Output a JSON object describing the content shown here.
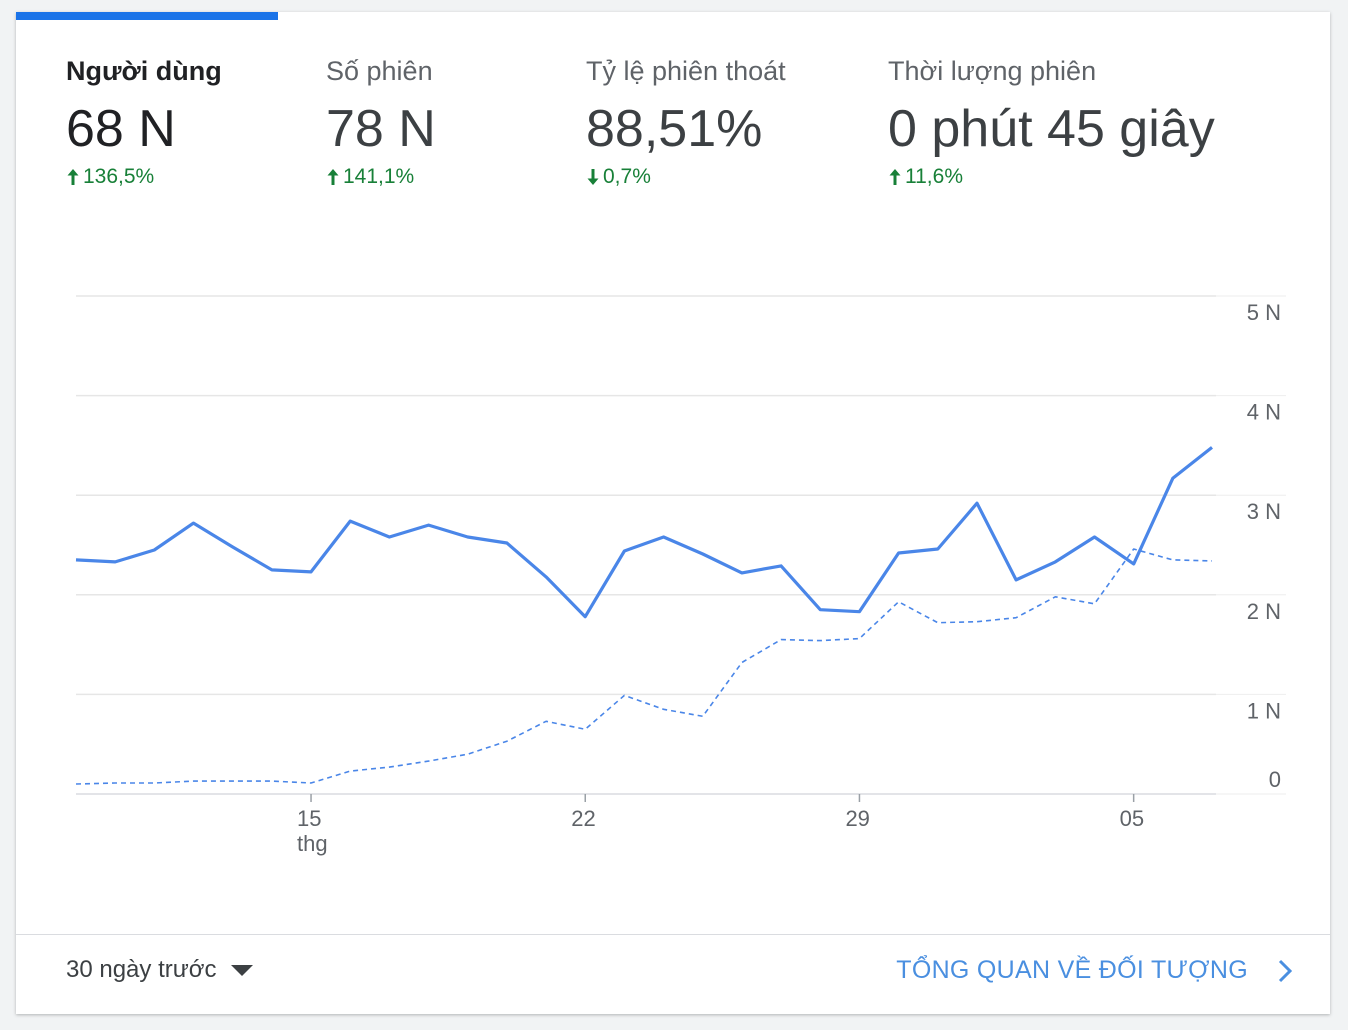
{
  "metrics": [
    {
      "label": "Người dùng",
      "value": "68 N",
      "change": "136,5%",
      "direction": "up"
    },
    {
      "label": "Số phiên",
      "value": "78 N",
      "change": "141,1%",
      "direction": "up"
    },
    {
      "label": "Tỷ lệ phiên thoát",
      "value": "88,51%",
      "change": "0,7%",
      "direction": "down"
    },
    {
      "label": "Thời lượng phiên",
      "value": "0 phút 45 giây",
      "change": "11,6%",
      "direction": "up"
    }
  ],
  "chart_data": {
    "type": "line",
    "y_ticks": [
      "0",
      "1 N",
      "2 N",
      "3 N",
      "4 N",
      "5 N"
    ],
    "ylim": [
      0,
      5000
    ],
    "x_ticks": [
      {
        "label": "15",
        "sublabel": "thg",
        "day_index": 6
      },
      {
        "label": "22",
        "sublabel": "",
        "day_index": 13
      },
      {
        "label": "29",
        "sublabel": "",
        "day_index": 20
      },
      {
        "label": "05",
        "sublabel": "",
        "day_index": 27
      }
    ],
    "series": [
      {
        "style": "solid",
        "color": "#4a86e8",
        "values": [
          2350,
          2330,
          2450,
          2720,
          2480,
          2250,
          2230,
          2740,
          2580,
          2700,
          2580,
          2520,
          2180,
          1780,
          2440,
          2580,
          2410,
          2220,
          2290,
          1850,
          1830,
          2420,
          2460,
          2920,
          2150,
          2330,
          2580,
          2310,
          3170,
          3480
        ]
      },
      {
        "style": "dashed",
        "color": "#4a86e8",
        "values": [
          100,
          110,
          110,
          130,
          130,
          130,
          110,
          230,
          270,
          330,
          400,
          530,
          730,
          650,
          990,
          850,
          780,
          1320,
          1550,
          1540,
          1560,
          1930,
          1720,
          1730,
          1770,
          1980,
          1910,
          2460,
          2350,
          2340
        ]
      }
    ],
    "grid": true
  },
  "footer": {
    "date_range": "30 ngày trước",
    "overview_link": "TỔNG QUAN VỀ ĐỐI TƯỢNG"
  },
  "colors": {
    "accent": "#1a73e8",
    "positive": "#188038",
    "link": "#4a8fe0"
  }
}
